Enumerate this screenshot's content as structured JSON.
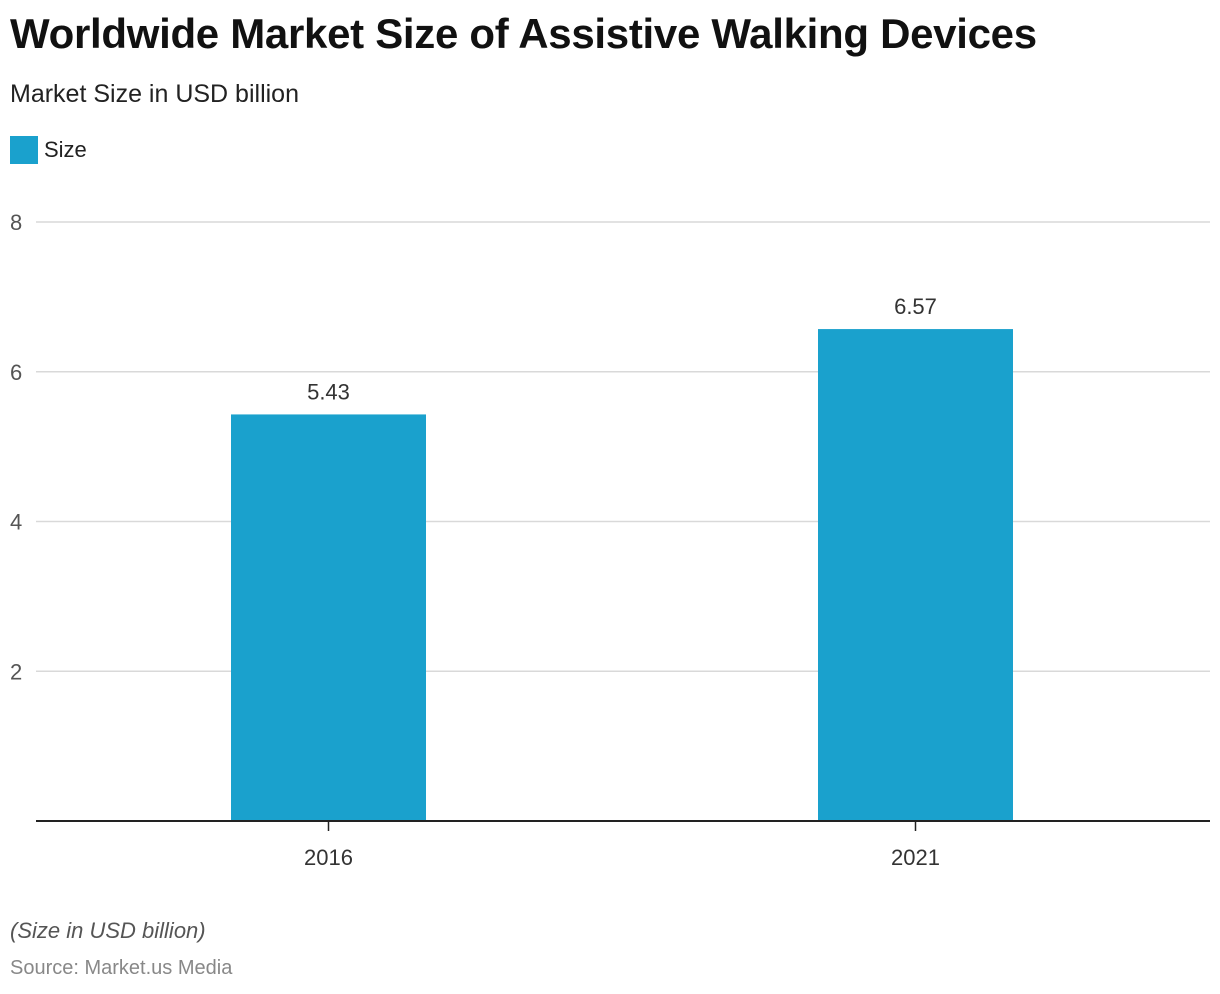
{
  "chart_data": {
    "type": "bar",
    "title": "Worldwide Market Size of Assistive Walking Devices",
    "subtitle": "Market Size in USD billion",
    "categories": [
      "2016",
      "2021"
    ],
    "series": [
      {
        "name": "Size",
        "values": [
          5.43,
          6.57
        ],
        "color": "#1aa1cd"
      }
    ],
    "value_labels": [
      "5.43",
      "6.57"
    ],
    "ylim": [
      0,
      8
    ],
    "yticks": [
      2,
      4,
      6,
      8
    ],
    "ytick_labels": [
      "2",
      "4",
      "6",
      "8"
    ],
    "grid": true,
    "legend": {
      "label": "Size",
      "position": "top-left"
    },
    "note": "(Size in USD billion)",
    "source": "Source: Market.us Media"
  }
}
